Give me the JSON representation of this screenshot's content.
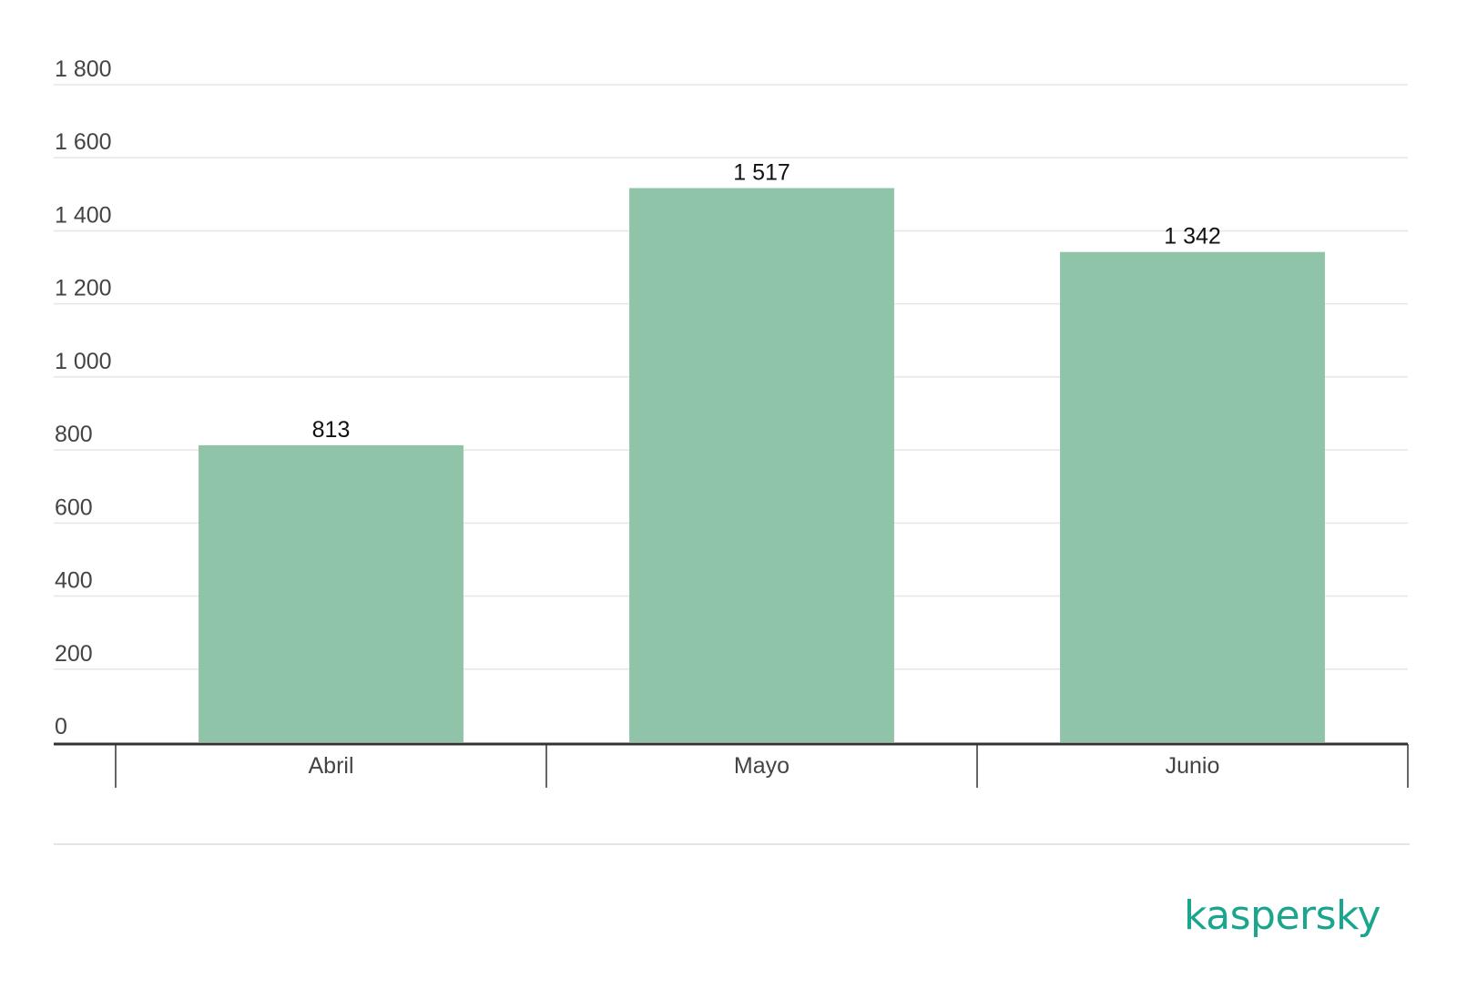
{
  "chart_data": {
    "type": "bar",
    "title": "",
    "xlabel": "",
    "ylabel": "",
    "categories": [
      "Abril",
      "Mayo",
      "Junio"
    ],
    "values": [
      813,
      1517,
      1342
    ],
    "value_labels": [
      "813",
      "1 517",
      "1 342"
    ],
    "ylim": [
      0,
      1800
    ],
    "yticks": [
      0,
      200,
      400,
      600,
      800,
      1000,
      1200,
      1400,
      1600,
      1800
    ],
    "ytick_labels": [
      "0",
      "200",
      "400",
      "600",
      "800",
      "1 000",
      "1 200",
      "1 400",
      "1 600",
      "1 800"
    ],
    "grid": true,
    "legend": "none",
    "bar_color": "#90c4a8"
  },
  "branding": {
    "logo_text": "kaspersky",
    "logo_color": "#1aa58f"
  }
}
